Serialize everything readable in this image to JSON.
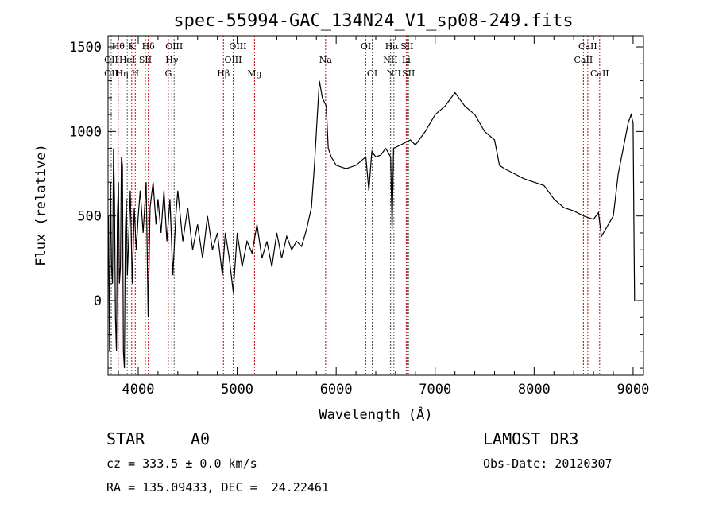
{
  "chart_data": {
    "type": "line",
    "title": "spec-55994-GAC_134N24_V1_sp08-249.fits",
    "xlabel": "Wavelength (Å)",
    "ylabel": "Flux (relative)",
    "xlim": [
      3695,
      9105
    ],
    "ylim": [
      -442,
      1566
    ],
    "xticks": [
      4000,
      5000,
      6000,
      7000,
      8000,
      9000
    ],
    "yticks": [
      0,
      500,
      1000,
      1500
    ],
    "series": [
      {
        "name": "flux",
        "x": [
          3700,
          3710,
          3720,
          3730,
          3740,
          3750,
          3760,
          3770,
          3780,
          3790,
          3800,
          3810,
          3820,
          3830,
          3840,
          3850,
          3860,
          3870,
          3880,
          3890,
          3900,
          3920,
          3940,
          3960,
          3980,
          4000,
          4020,
          4050,
          4080,
          4100,
          4120,
          4150,
          4180,
          4200,
          4230,
          4260,
          4290,
          4320,
          4350,
          4380,
          4400,
          4450,
          4500,
          4550,
          4600,
          4650,
          4700,
          4750,
          4800,
          4850,
          4880,
          4920,
          4960,
          5000,
          5050,
          5100,
          5150,
          5200,
          5250,
          5300,
          5350,
          5400,
          5450,
          5500,
          5550,
          5600,
          5650,
          5700,
          5750,
          5780,
          5810,
          5830,
          5860,
          5900,
          5920,
          5950,
          6000,
          6100,
          6200,
          6300,
          6330,
          6360,
          6400,
          6450,
          6500,
          6550,
          6565,
          6580,
          6650,
          6750,
          6800,
          6900,
          7000,
          7100,
          7200,
          7300,
          7400,
          7500,
          7600,
          7650,
          7700,
          7800,
          7900,
          8000,
          8100,
          8200,
          8300,
          8400,
          8500,
          8600,
          8650,
          8680,
          8750,
          8800,
          8850,
          8900,
          8950,
          8980,
          9000,
          9010,
          9015
        ],
        "y": [
          500,
          -300,
          700,
          200,
          100,
          900,
          600,
          -100,
          -300,
          500,
          700,
          100,
          200,
          850,
          800,
          -300,
          -400,
          400,
          600,
          150,
          300,
          650,
          100,
          550,
          300,
          500,
          650,
          400,
          700,
          -100,
          550,
          700,
          450,
          600,
          400,
          650,
          350,
          600,
          150,
          500,
          650,
          350,
          550,
          300,
          450,
          250,
          500,
          300,
          400,
          150,
          400,
          250,
          50,
          400,
          200,
          350,
          280,
          450,
          250,
          350,
          200,
          400,
          250,
          380,
          300,
          350,
          320,
          420,
          550,
          800,
          1100,
          1300,
          1200,
          1150,
          900,
          850,
          800,
          780,
          800,
          850,
          650,
          880,
          850,
          860,
          900,
          850,
          420,
          900,
          920,
          950,
          920,
          1000,
          1100,
          1150,
          1230,
          1150,
          1100,
          1000,
          950,
          800,
          780,
          750,
          720,
          700,
          680,
          600,
          550,
          530,
          500,
          480,
          520,
          380,
          450,
          500,
          750,
          900,
          1050,
          1100,
          1050,
          300,
          0
        ]
      }
    ],
    "lines": [
      {
        "label": "OII",
        "w": 3727,
        "row": 1,
        "type": "em"
      },
      {
        "label": "Hθ",
        "w": 3798,
        "row": 0,
        "type": "abs"
      },
      {
        "label": "OII",
        "w": 3727,
        "row": 2,
        "type": "em"
      },
      {
        "label": "Hη",
        "w": 3835,
        "row": 2,
        "type": "abs"
      },
      {
        "label": "HeI",
        "w": 3889,
        "row": 1,
        "type": "em"
      },
      {
        "label": "K",
        "w": 3934,
        "row": 0,
        "type": "abs"
      },
      {
        "label": "H",
        "w": 3970,
        "row": 2,
        "type": "abs"
      },
      {
        "label": "SII",
        "w": 4072,
        "row": 1,
        "type": "em"
      },
      {
        "label": "Hδ",
        "w": 4102,
        "row": 0,
        "type": "abs"
      },
      {
        "label": "G",
        "w": 4304,
        "row": 2,
        "type": "abs"
      },
      {
        "label": "Hγ",
        "w": 4340,
        "row": 1,
        "type": "abs"
      },
      {
        "label": "OIII",
        "w": 4363,
        "row": 0,
        "type": "em"
      },
      {
        "label": "Hβ",
        "w": 4861,
        "row": 2,
        "type": "abs"
      },
      {
        "label": "OIII",
        "w": 4959,
        "row": 1,
        "type": "em"
      },
      {
        "label": "OIII",
        "w": 5007,
        "row": 0,
        "type": "em"
      },
      {
        "label": "Mg",
        "w": 5175,
        "row": 2,
        "type": "abs"
      },
      {
        "label": "Na",
        "w": 5893,
        "row": 1,
        "type": "abs"
      },
      {
        "label": "OI",
        "w": 6300,
        "row": 0,
        "type": "em"
      },
      {
        "label": "OI",
        "w": 6364,
        "row": 2,
        "type": "em"
      },
      {
        "label": "NII",
        "w": 6548,
        "row": 1,
        "type": "em"
      },
      {
        "label": "Hα",
        "w": 6563,
        "row": 0,
        "type": "abs"
      },
      {
        "label": "NII",
        "w": 6583,
        "row": 2,
        "type": "em"
      },
      {
        "label": "Li",
        "w": 6708,
        "row": 1,
        "type": "abs"
      },
      {
        "label": "SII",
        "w": 6716,
        "row": 0,
        "type": "em"
      },
      {
        "label": "SII",
        "w": 6731,
        "row": 2,
        "type": "em"
      },
      {
        "label": "CaII",
        "w": 8498,
        "row": 1,
        "type": "abs"
      },
      {
        "label": "CaII",
        "w": 8542,
        "row": 0,
        "type": "abs"
      },
      {
        "label": "CaII",
        "w": 8662,
        "row": 2,
        "type": "abs"
      }
    ]
  },
  "info": {
    "object": "STAR",
    "subclass": "A0",
    "survey": "LAMOST DR3",
    "cz": "cz = 333.5 ± 0.0 km/s",
    "obs_date": "Obs-Date: 20120307",
    "coords": "RA = 135.09433, DEC =  24.22461"
  },
  "colors": {
    "line_marker": "#cc0000",
    "spectrum": "#000000"
  }
}
